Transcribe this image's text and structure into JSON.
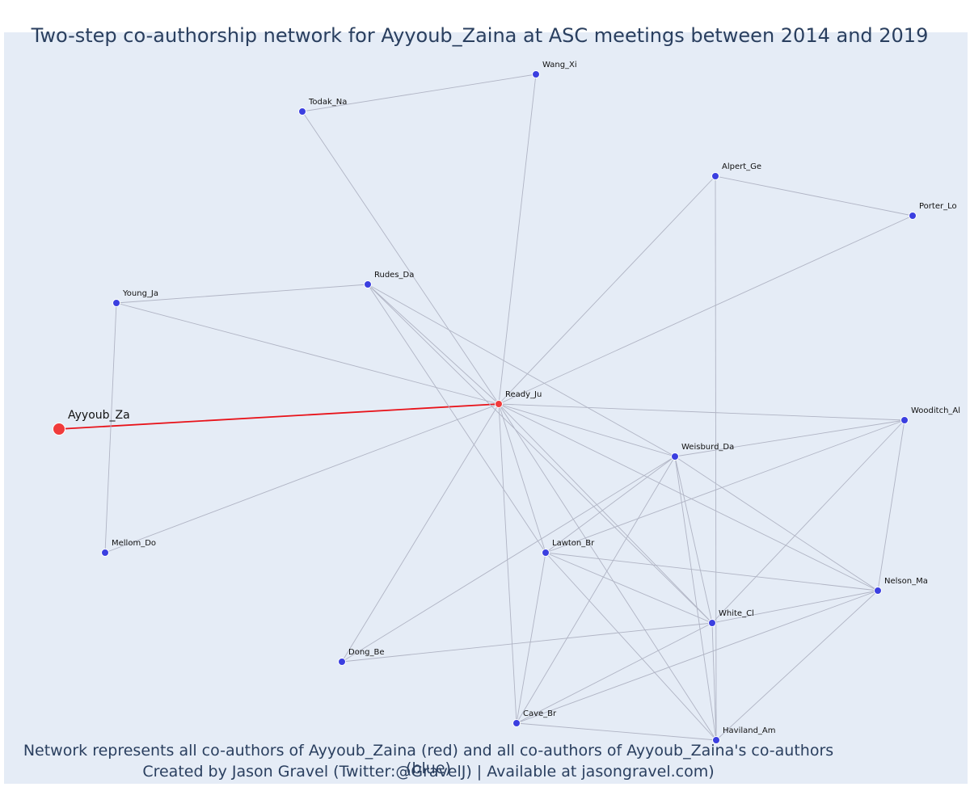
{
  "title": "Two-step co-authorship network for Ayyoub_Zaina at ASC meetings between 2014 and 2019",
  "captions": {
    "line1": "Network represents all co-authors of Ayyoub_Zaina (red) and all co-authors of Ayyoub_Zaina's co-authors (blue)",
    "line2": "Created by Jason Gravel (Twitter:@GravelJ) | Available at jasongravel.com)"
  },
  "colors": {
    "background": "#e5ecf6",
    "edge": "#b0b4c4",
    "focal_edge": "#e8131a",
    "focal_node": "#f03b3b",
    "direct_node": "#f03b3b",
    "secondary_node": "#3b3fe0",
    "label": "#111111"
  },
  "nodes": [
    {
      "id": "Ayyoub_Za",
      "group": "focal"
    },
    {
      "id": "Ready_Ju",
      "group": "direct"
    },
    {
      "id": "Wang_Xi",
      "group": "secondary"
    },
    {
      "id": "Todak_Na",
      "group": "secondary"
    },
    {
      "id": "Alpert_Ge",
      "group": "secondary"
    },
    {
      "id": "Porter_Lo",
      "group": "secondary"
    },
    {
      "id": "Rudes_Da",
      "group": "secondary"
    },
    {
      "id": "Young_Ja",
      "group": "secondary"
    },
    {
      "id": "Wooditch_Al",
      "group": "secondary"
    },
    {
      "id": "Weisburd_Da",
      "group": "secondary"
    },
    {
      "id": "Mellom_Do",
      "group": "secondary"
    },
    {
      "id": "Lawton_Br",
      "group": "secondary"
    },
    {
      "id": "Nelson_Ma",
      "group": "secondary"
    },
    {
      "id": "White_Cl",
      "group": "secondary"
    },
    {
      "id": "Dong_Be",
      "group": "secondary"
    },
    {
      "id": "Cave_Br",
      "group": "secondary"
    },
    {
      "id": "Haviland_Am",
      "group": "secondary"
    }
  ],
  "edges": [
    [
      "Ayyoub_Za",
      "Ready_Ju"
    ],
    [
      "Wang_Xi",
      "Todak_Na"
    ],
    [
      "Wang_Xi",
      "Ready_Ju"
    ],
    [
      "Todak_Na",
      "Ready_Ju"
    ],
    [
      "Alpert_Ge",
      "Porter_Lo"
    ],
    [
      "Alpert_Ge",
      "Ready_Ju"
    ],
    [
      "Alpert_Ge",
      "Haviland_Am"
    ],
    [
      "Porter_Lo",
      "Ready_Ju"
    ],
    [
      "Young_Ja",
      "Rudes_Da"
    ],
    [
      "Young_Ja",
      "Ready_Ju"
    ],
    [
      "Young_Ja",
      "Mellom_Do"
    ],
    [
      "Rudes_Da",
      "Ready_Ju"
    ],
    [
      "Rudes_Da",
      "Weisburd_Da"
    ],
    [
      "Rudes_Da",
      "Lawton_Br"
    ],
    [
      "Rudes_Da",
      "White_Cl"
    ],
    [
      "Mellom_Do",
      "Ready_Ju"
    ],
    [
      "Ready_Ju",
      "Wooditch_Al"
    ],
    [
      "Ready_Ju",
      "Weisburd_Da"
    ],
    [
      "Ready_Ju",
      "Lawton_Br"
    ],
    [
      "Ready_Ju",
      "Nelson_Ma"
    ],
    [
      "Ready_Ju",
      "White_Cl"
    ],
    [
      "Ready_Ju",
      "Dong_Be"
    ],
    [
      "Ready_Ju",
      "Cave_Br"
    ],
    [
      "Ready_Ju",
      "Haviland_Am"
    ],
    [
      "Weisburd_Da",
      "Wooditch_Al"
    ],
    [
      "Weisburd_Da",
      "Nelson_Ma"
    ],
    [
      "Weisburd_Da",
      "White_Cl"
    ],
    [
      "Weisburd_Da",
      "Haviland_Am"
    ],
    [
      "Weisburd_Da",
      "Cave_Br"
    ],
    [
      "Weisburd_Da",
      "Lawton_Br"
    ],
    [
      "Weisburd_Da",
      "Dong_Be"
    ],
    [
      "Wooditch_Al",
      "Nelson_Ma"
    ],
    [
      "Wooditch_Al",
      "White_Cl"
    ],
    [
      "Wooditch_Al",
      "Lawton_Br"
    ],
    [
      "Lawton_Br",
      "Nelson_Ma"
    ],
    [
      "Lawton_Br",
      "White_Cl"
    ],
    [
      "Lawton_Br",
      "Cave_Br"
    ],
    [
      "Lawton_Br",
      "Haviland_Am"
    ],
    [
      "Nelson_Ma",
      "White_Cl"
    ],
    [
      "Nelson_Ma",
      "Cave_Br"
    ],
    [
      "Nelson_Ma",
      "Haviland_Am"
    ],
    [
      "White_Cl",
      "Dong_Be"
    ],
    [
      "White_Cl",
      "Cave_Br"
    ],
    [
      "White_Cl",
      "Haviland_Am"
    ],
    [
      "Cave_Br",
      "Haviland_Am"
    ]
  ]
}
